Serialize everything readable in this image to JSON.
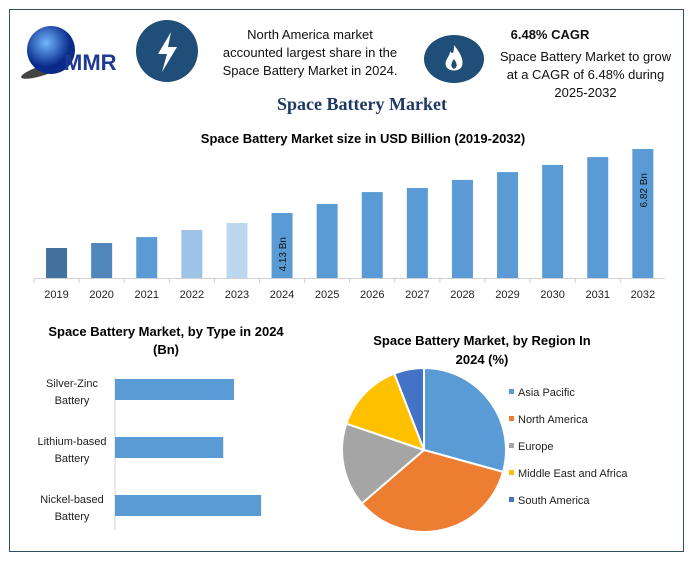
{
  "header": {
    "logo_text": "MMR",
    "bolt_icon": "lightning-bolt-icon",
    "flame_icon": "flame-icon",
    "fact1": [
      "North America market",
      "accounted largest share in the",
      "Space Battery Market in 2024."
    ],
    "cagr_title": "6.48% CAGR",
    "fact2": [
      "Space Battery Market to grow",
      "at a CAGR of 6.48% during",
      "2025-2032"
    ],
    "main_title": "Space Battery Market"
  },
  "colors": {
    "accent": "#1f4e79",
    "title": "#1f3864",
    "bar": "#5b9bd5"
  },
  "chart_data": [
    {
      "type": "bar",
      "title": "Space Battery Market size in USD Billion (2019-2032)",
      "categories": [
        "2019",
        "2020",
        "2021",
        "2022",
        "2023",
        "2024",
        "2025",
        "2026",
        "2027",
        "2028",
        "2029",
        "2030",
        "2031",
        "2032"
      ],
      "values": [
        2.66,
        2.87,
        3.12,
        3.42,
        3.71,
        4.13,
        4.51,
        5.01,
        5.18,
        5.52,
        5.85,
        6.15,
        6.48,
        6.82
      ],
      "colors": [
        "#41719c",
        "#4f86bc",
        "#5b9bd5",
        "#9dc3e6",
        "#bdd7ee",
        "#5b9bd5",
        "#5b9bd5",
        "#5b9bd5",
        "#5b9bd5",
        "#5b9bd5",
        "#5b9bd5",
        "#5b9bd5",
        "#5b9bd5",
        "#5b9bd5"
      ],
      "data_labels": {
        "2024": "4.13 Bn",
        "2032": "6.82 Bn"
      },
      "grid": false
    },
    {
      "type": "bar",
      "orientation": "horizontal",
      "title": "Space Battery Market, by Type in 2024 (Bn)",
      "categories": [
        [
          "Silver-Zinc",
          "Battery"
        ],
        [
          "Lithium-based",
          "Battery"
        ],
        [
          "Nickel-based",
          "Battery"
        ]
      ],
      "values": [
        1.32,
        1.2,
        1.62
      ],
      "grid": false
    },
    {
      "type": "pie",
      "title": [
        "Space Battery Market, by Region In",
        "2024 (%)"
      ],
      "categories": [
        "Asia Pacific",
        "North America",
        "Europe",
        "Middle East and Africa",
        "South America"
      ],
      "values": [
        29.3,
        34.4,
        16.5,
        13.9,
        5.9
      ],
      "colors": [
        "#5b9bd5",
        "#ed7d31",
        "#a5a5a5",
        "#ffc000",
        "#4472c4"
      ],
      "legend": "right"
    }
  ]
}
